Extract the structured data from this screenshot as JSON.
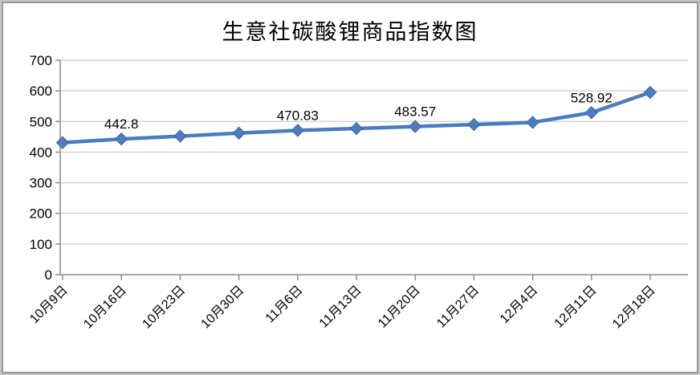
{
  "chart_data": {
    "type": "line",
    "title": "生意社碳酸锂商品指数图",
    "categories": [
      "10月9日",
      "10月16日",
      "10月23日",
      "10月30日",
      "11月6日",
      "11月13日",
      "11月20日",
      "11月27日",
      "12月4日",
      "12月11日",
      "12月18日"
    ],
    "values": [
      431,
      442.8,
      452,
      462,
      470.83,
      477,
      483.57,
      490,
      497,
      528.92,
      595
    ],
    "point_labels": [
      "",
      "442.8",
      "",
      "",
      "470.83",
      "",
      "483.57",
      "",
      "",
      "528.92",
      ""
    ],
    "ylim": [
      0,
      700
    ],
    "ytick_step": 100,
    "ytick_labels": [
      "0",
      "100",
      "200",
      "300",
      "400",
      "500",
      "600",
      "700"
    ],
    "xlabel": "",
    "ylabel": "",
    "grid": true,
    "legend": "none",
    "x_label_rotation_deg": 45,
    "colors": {
      "line": "#4C7CBF",
      "marker": "#4C7CBF",
      "marker_edge": "#3E68A2",
      "gridline": "#c0c0c0",
      "axis": "#8c8c8c",
      "text": "#000000",
      "background": "#ffffff",
      "frame_border": "#979797"
    }
  }
}
